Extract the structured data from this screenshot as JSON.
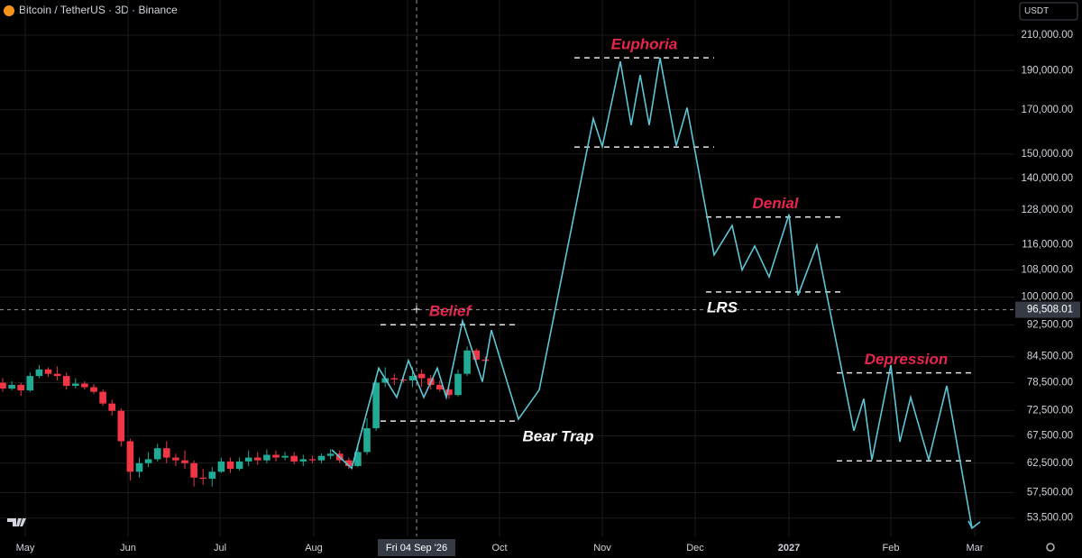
{
  "chart_data": {
    "type": "candlestick",
    "title": "Bitcoin / TetherUS · 3D · Binance",
    "currency": "USDT",
    "log_scale": true,
    "grid": true,
    "ylim": [
      50800,
      232000
    ],
    "yticks": [
      {
        "value": 210000,
        "label": "210,000.00"
      },
      {
        "value": 190000,
        "label": "190,000.00"
      },
      {
        "value": 170000,
        "label": "170,000.00"
      },
      {
        "value": 150000,
        "label": "150,000.00"
      },
      {
        "value": 140000,
        "label": "140,000.00"
      },
      {
        "value": 128000,
        "label": "128,000.00"
      },
      {
        "value": 116000,
        "label": "116,000.00"
      },
      {
        "value": 108000,
        "label": "108,000.00"
      },
      {
        "value": 100000,
        "label": "100,000.00"
      },
      {
        "value": 92500,
        "label": "92,500.00"
      },
      {
        "value": 84500,
        "label": "84,500.00"
      },
      {
        "value": 78500,
        "label": "78,500.00"
      },
      {
        "value": 72500,
        "label": "72,500.00"
      },
      {
        "value": 67500,
        "label": "67,500.00"
      },
      {
        "value": 62500,
        "label": "62,500.00"
      },
      {
        "value": 57500,
        "label": "57,500.00"
      },
      {
        "value": 53500,
        "label": "53,500.00"
      }
    ],
    "x_labels": [
      "May",
      "Jun",
      "Jul",
      "Aug",
      "Oct",
      "Nov",
      "Dec",
      "2027",
      "Feb",
      "Mar"
    ],
    "up_color": "#22ab94",
    "down_color": "#f23645",
    "candles": {
      "open": [
        78500,
        77200,
        78000,
        76800,
        80000,
        81500,
        80500,
        80000,
        77800,
        78300,
        77500,
        76500,
        74000,
        72500,
        66500,
        61000,
        62500,
        63200,
        65200,
        63500,
        63000,
        62500,
        60000,
        59800,
        61000,
        62800,
        61500,
        62800,
        63500,
        63000,
        64000,
        63500,
        63800,
        62800,
        63200,
        63000,
        63800,
        64200,
        63000,
        62000,
        64500,
        69000,
        78500,
        79500,
        79200,
        79000,
        80500,
        79500,
        78000,
        77000,
        75800,
        80500,
        86000,
        83800
      ],
      "close": [
        77200,
        78000,
        76800,
        80000,
        81500,
        80500,
        80000,
        77800,
        78300,
        77500,
        76500,
        74000,
        72500,
        66500,
        61000,
        62500,
        63200,
        65200,
        63500,
        63000,
        62500,
        60000,
        59800,
        61000,
        62800,
        61500,
        62800,
        63500,
        63000,
        64000,
        63500,
        63800,
        62800,
        63200,
        63000,
        63800,
        64200,
        63000,
        62000,
        64500,
        69000,
        78500,
        79500,
        79200,
        79000,
        80000,
        79500,
        78000,
        77000,
        75800,
        80500,
        86000,
        83800,
        83500
      ],
      "high": [
        79500,
        78800,
        78500,
        80800,
        82500,
        82000,
        82200,
        80800,
        79500,
        78800,
        78200,
        77000,
        74800,
        73000,
        67000,
        63500,
        64500,
        66000,
        66500,
        64200,
        64800,
        63000,
        61500,
        61800,
        63500,
        63500,
        63500,
        64800,
        64500,
        65000,
        64800,
        64500,
        64500,
        64000,
        63800,
        64200,
        65000,
        64800,
        63500,
        66000,
        71000,
        79500,
        82000,
        80500,
        80200,
        82000,
        81500,
        80200,
        79000,
        77500,
        81500,
        87000,
        86500,
        84500
      ],
      "low": [
        76500,
        76800,
        75600,
        76500,
        79500,
        79800,
        79000,
        77000,
        77200,
        77000,
        76000,
        73500,
        71500,
        65500,
        59500,
        60000,
        61800,
        62800,
        62500,
        62000,
        61500,
        58500,
        58800,
        58500,
        60800,
        60800,
        61200,
        62000,
        62200,
        62500,
        62800,
        63000,
        62300,
        62000,
        62500,
        62500,
        63200,
        62500,
        61500,
        61800,
        64000,
        68500,
        77500,
        78000,
        78500,
        77500,
        77500,
        77000,
        76500,
        75000,
        75500,
        80000,
        82500,
        83000
      ]
    },
    "projection": {
      "color": "#5cc6d4",
      "values": [
        64900,
        61600,
        81800,
        75300,
        83600,
        75300,
        81800,
        75300,
        93500,
        78700,
        91100,
        70800,
        76900,
        165800,
        153200,
        195000,
        162800,
        187600,
        162800,
        197000,
        153600,
        171000,
        112700,
        122500,
        108000,
        115600,
        105900,
        126400,
        100500,
        115900,
        68500,
        75000,
        63100,
        82500,
        66400,
        75300,
        63100,
        77800,
        52000
      ]
    },
    "annotation_color": "#e8254d",
    "phases": [
      {
        "labels": [
          "Belief",
          "Bear Trap"
        ],
        "levels": [
          92500,
          70400
        ]
      },
      {
        "labels": [
          "Euphoria"
        ],
        "levels": [
          197000,
          153000
        ]
      },
      {
        "labels": [
          "Denial",
          "LRS"
        ],
        "levels": [
          125500,
          101500
        ]
      },
      {
        "labels": [
          "Depression"
        ],
        "levels": [
          80700,
          62900
        ]
      }
    ],
    "crosshair": {
      "price": {
        "value": 96508.01,
        "label": "96,508.01"
      },
      "date": "Fri 04 Sep '26"
    }
  }
}
